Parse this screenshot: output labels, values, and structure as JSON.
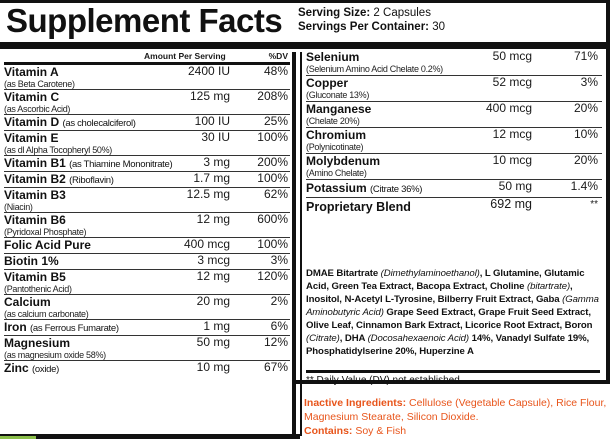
{
  "title": "Supplement Facts",
  "serving": {
    "size_label": "Serving Size:",
    "size_value": "2 Capsules",
    "per_container_label": "Servings Per Container:",
    "per_container_value": "30"
  },
  "table_header": {
    "amount": "Amount Per Serving",
    "dv": "%DV"
  },
  "left_nutrients": [
    {
      "name": "Vitamin A",
      "source": "(as Beta Carotene)",
      "amount": "2400 IU",
      "dv": "48%"
    },
    {
      "name": "Vitamin C",
      "source": "(as Ascorbic Acid)",
      "amount": "125 mg",
      "dv": "208%"
    },
    {
      "name": "Vitamin D",
      "source": "(as cholecalciferol)",
      "amount": "100 IU",
      "dv": "25%",
      "inline": true
    },
    {
      "name": "Vitamin E",
      "source": "(as dl Alpha Tocopheryl 50%)",
      "amount": "30 IU",
      "dv": "100%"
    },
    {
      "name": "Vitamin B1",
      "source": "(as Thiamine Mononitrate)",
      "amount": "3 mg",
      "dv": "200%",
      "inline": true
    },
    {
      "name": "Vitamin B2",
      "source": "(Riboflavin)",
      "amount": "1.7 mg",
      "dv": "100%",
      "inline": true
    },
    {
      "name": "Vitamin B3",
      "source": "(Niacin)",
      "amount": "12.5 mg",
      "dv": "62%"
    },
    {
      "name": "Vitamin B6",
      "source": "(Pyridoxal Phosphate)",
      "amount": "12 mg",
      "dv": "600%"
    },
    {
      "name": "Folic Acid Pure",
      "source": "",
      "amount": "400 mcg",
      "dv": "100%",
      "inline": true
    },
    {
      "name": "Biotin 1%",
      "source": "",
      "amount": "3 mcg",
      "dv": "3%",
      "inline": true
    },
    {
      "name": "Vitamin B5",
      "source": "(Pantothenic Acid)",
      "amount": "12 mg",
      "dv": "120%"
    },
    {
      "name": "Calcium",
      "source": "(as calcium carbonate)",
      "amount": "20 mg",
      "dv": "2%"
    },
    {
      "name": "Iron",
      "source": "(as Ferrous Fumarate)",
      "amount": "1 mg",
      "dv": "6%",
      "inline": true
    },
    {
      "name": "Magnesium",
      "source": "(as magnesium oxide 58%)",
      "amount": "50 mg",
      "dv": "12%"
    },
    {
      "name": "Zinc",
      "source": "(oxide)",
      "amount": "10 mg",
      "dv": "67%",
      "inline": true
    }
  ],
  "right_nutrients": [
    {
      "name": "Selenium",
      "source": "(Selenium Amino Acid Chelate 0.2%)",
      "amount": "50 mcg",
      "dv": "71%"
    },
    {
      "name": "Copper",
      "source": "(Gluconate 13%)",
      "amount": "52 mcg",
      "dv": "3%"
    },
    {
      "name": "Manganese",
      "source": "(Chelate 20%)",
      "amount": "400 mcg",
      "dv": "20%"
    },
    {
      "name": "Chromium",
      "source": "(Polynicotinate)",
      "amount": "12 mcg",
      "dv": "10%"
    },
    {
      "name": "Molybdenum",
      "source": "(Amino Chelate)",
      "amount": "10 mcg",
      "dv": "20%"
    },
    {
      "name": "Potassium",
      "source": "(Citrate 36%)",
      "amount": "50 mg",
      "dv": "1.4%",
      "inline": true
    }
  ],
  "proprietary_blend": {
    "name": "Proprietary Blend",
    "amount": "692 mg",
    "dv": "**",
    "ingredients": [
      {
        "text": "DMAE Bitartrate ",
        "italic": false
      },
      {
        "text": "(Dimethylaminoethanol)",
        "italic": true
      },
      {
        "text": ", L Glutamine, Glutamic Acid, Green Tea Extract, Bacopa Extract, Choline ",
        "italic": false
      },
      {
        "text": "(bitartrate)",
        "italic": true
      },
      {
        "text": ", Inositol, N-Acetyl L-Tyrosine, Bilberry Fruit Extract, Gaba ",
        "italic": false
      },
      {
        "text": "(Gamma Aminobutyric Acid)",
        "italic": true
      },
      {
        "text": " Grape Seed Extract, Grape Fruit Seed Extract, Olive Leaf, Cinnamon Bark Extract, Licorice Root Extract, Boron ",
        "italic": false
      },
      {
        "text": "(Citrate)",
        "italic": true
      },
      {
        "text": ", DHA ",
        "italic": false
      },
      {
        "text": "(Docosahexaenoic Acid)",
        "italic": true
      },
      {
        "text": " 14%, Vanadyl Sulfate 19%, Phosphatidylserine 20%, Huperzine A",
        "italic": false
      }
    ]
  },
  "dv_note": "** Daily Value (DV) not established",
  "inactive": {
    "label": "Inactive Ingredients:",
    "text": " Cellulose (Vegetable Capsule), Rice Flour, Magnesium Stearate, Silicon Dioxide.",
    "contains_label": "Contains:",
    "contains_text": " Soy & Fish"
  },
  "colors": {
    "text": "#111111",
    "accent_orange": "#e8551b",
    "accent_green": "#8bbf4a"
  }
}
